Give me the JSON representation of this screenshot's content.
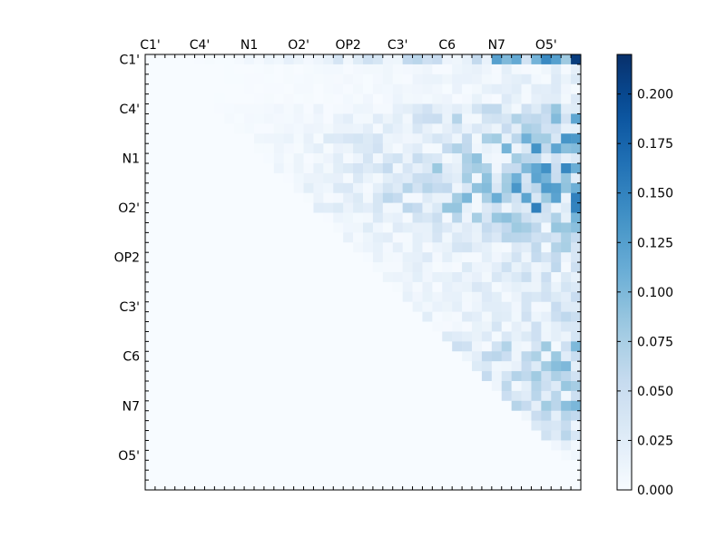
{
  "chart_data": {
    "type": "heatmap",
    "title": "",
    "xlabel": "",
    "ylabel": "",
    "x_tick_labels": [
      "C1'",
      "C4'",
      "N1",
      "O2'",
      "OP2",
      "C3'",
      "C6",
      "N7",
      "O5'"
    ],
    "y_tick_labels": [
      "C1'",
      "C4'",
      "N1",
      "O2'",
      "OP2",
      "C3'",
      "C6",
      "N7",
      "O5'"
    ],
    "grid_size": 44,
    "tick_every": 5,
    "colorbar": {
      "ticks": [
        "0.000",
        "0.025",
        "0.050",
        "0.075",
        "0.100",
        "0.125",
        "0.150",
        "0.175",
        "0.200"
      ],
      "vmin": 0,
      "vmax": 0.22
    },
    "colormap": [
      "#f7fbff",
      "#deebf7",
      "#c6dbef",
      "#9ecae1",
      "#6baed6",
      "#4292c6",
      "#2171b5",
      "#08519c",
      "#08306b"
    ],
    "nonzero_region": "upper-triangle",
    "row_scale": [
      1.0,
      0.15,
      0.15,
      0.15,
      0.2,
      0.5,
      0.6,
      0.45,
      0.9,
      0.8,
      0.75,
      0.9,
      0.7,
      0.9,
      1.0,
      0.9,
      0.6,
      0.55,
      0.45,
      0.35,
      0.35,
      0.3,
      0.3,
      0.3,
      0.25,
      0.3,
      0.3,
      0.3,
      0.4,
      0.45,
      0.45,
      0.55,
      0.45,
      0.4,
      0.35,
      0.45,
      0.35,
      0.3,
      0.3,
      0.2,
      0.1,
      0.02,
      0.02,
      0.02
    ],
    "peak_value": 0.21
  }
}
